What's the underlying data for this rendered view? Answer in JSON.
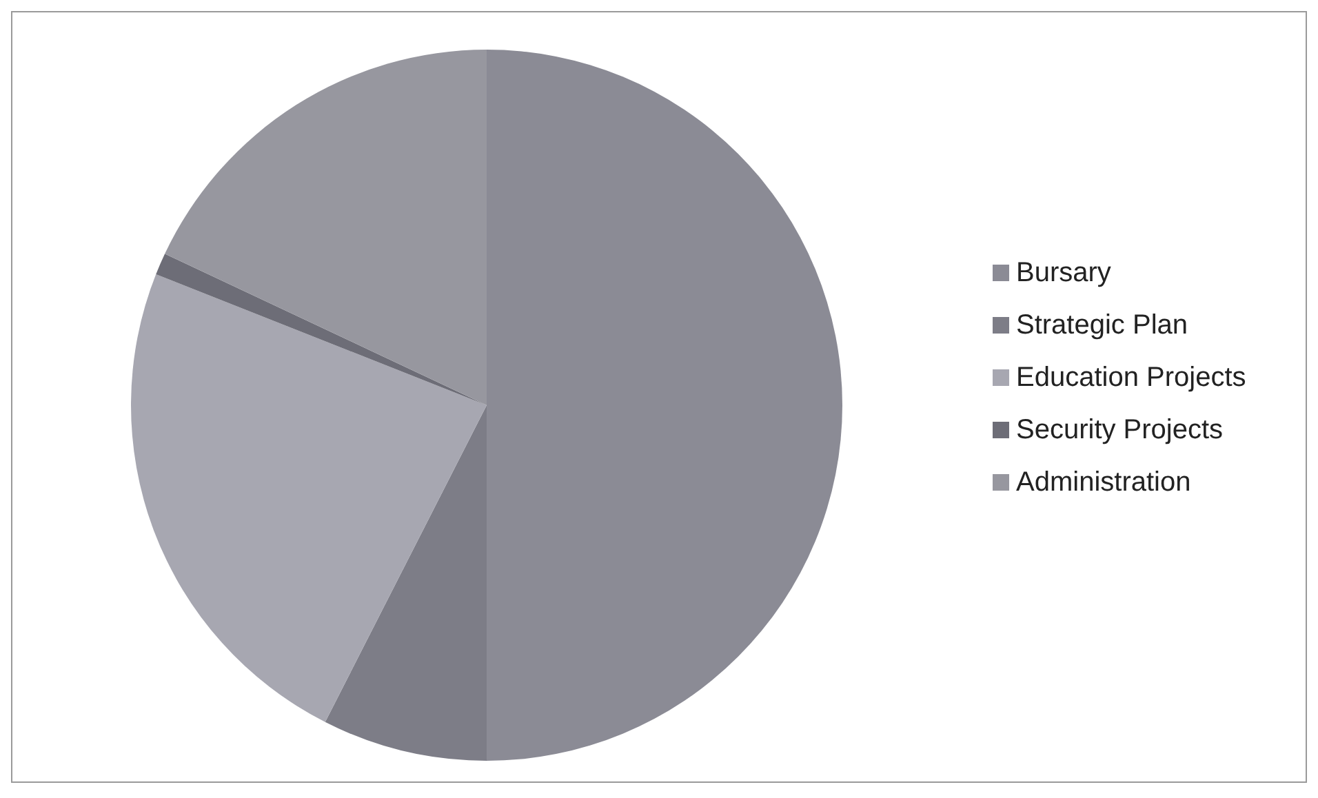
{
  "chart_data": {
    "type": "pie",
    "categories": [
      "Bursary",
      "Strategic Plan",
      "Education Projects",
      "Security Projects",
      "Administration"
    ],
    "values": [
      50,
      7.5,
      23.5,
      1,
      18
    ],
    "colors": [
      "#8b8b95",
      "#7d7d87",
      "#a7a7b1",
      "#6d6d77",
      "#97979f"
    ],
    "legend": "right"
  }
}
